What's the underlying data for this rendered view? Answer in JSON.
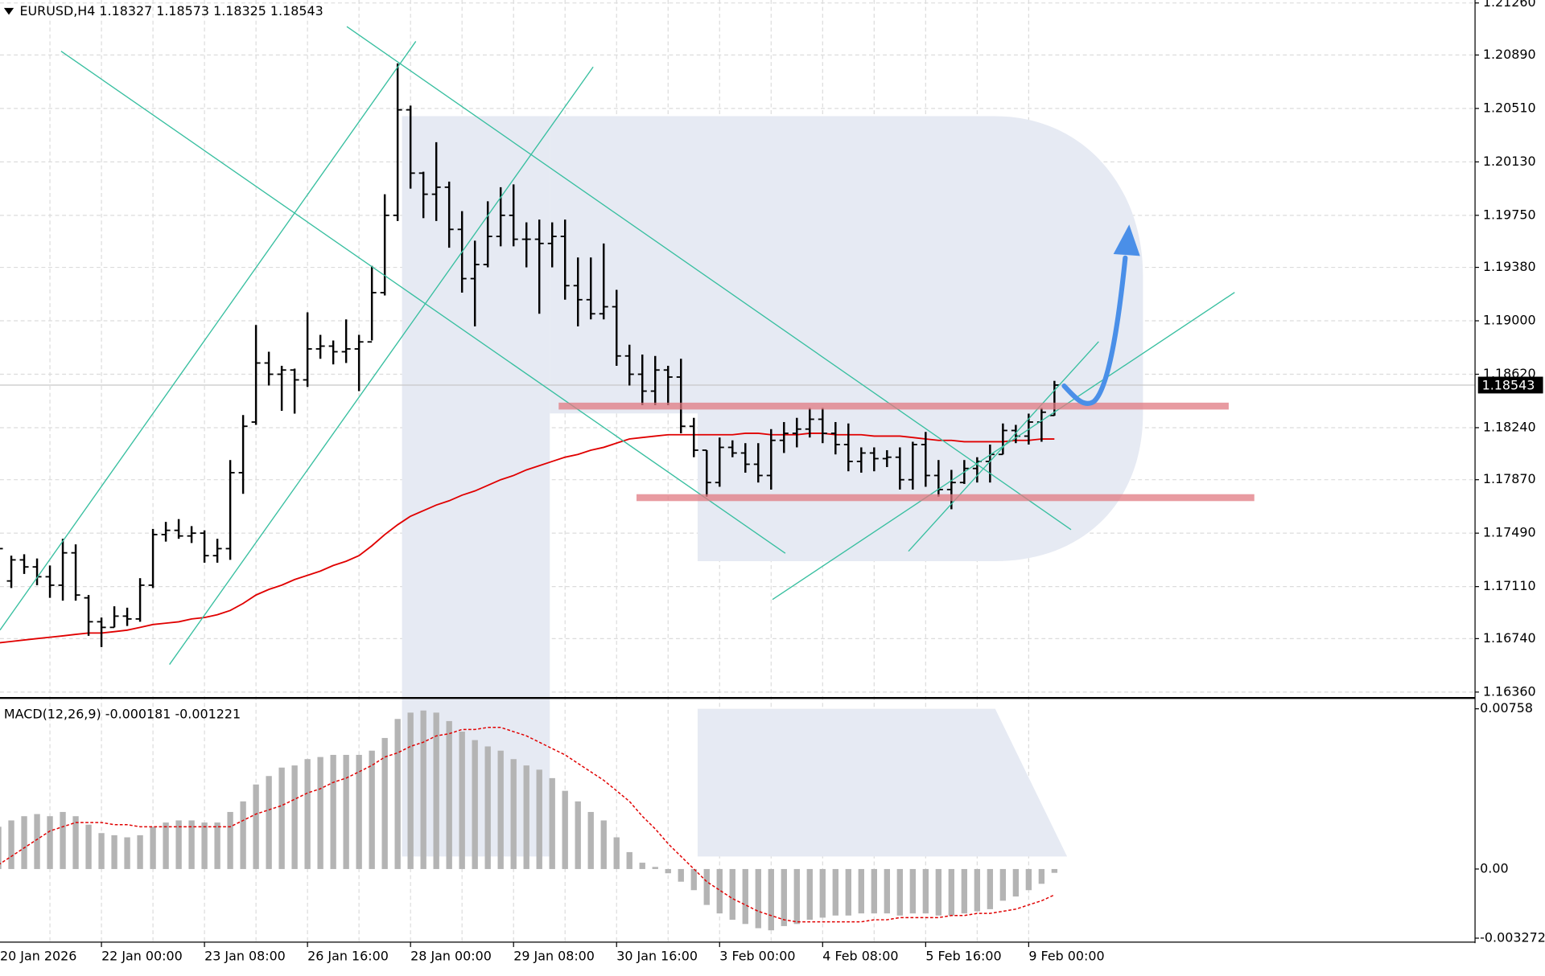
{
  "chart_data": [
    {
      "type": "ohlc",
      "title": "EURUSD,H4  1.18327 1.18573 1.18325 1.18543",
      "categories": [
        "20 Jan 2026",
        null,
        null,
        null,
        null,
        null,
        null,
        null,
        "22 Jan 00:00",
        null,
        null,
        null,
        null,
        null,
        null,
        null,
        "23 Jan 08:00",
        null,
        null,
        null,
        null,
        null,
        null,
        null,
        "26 Jan 16:00",
        null,
        null,
        null,
        null,
        null,
        null,
        null,
        "28 Jan 00:00",
        null,
        null,
        null,
        null,
        null,
        null,
        null,
        "29 Jan 08:00",
        null,
        null,
        null,
        null,
        null,
        null,
        null,
        "30 Jan 16:00",
        null,
        null,
        null,
        null,
        null,
        null,
        null,
        "3 Feb 00:00",
        null,
        null,
        null,
        null,
        null,
        null,
        null,
        "4 Feb 08:00",
        null,
        null,
        null,
        null,
        null,
        null,
        null,
        "5 Feb 16:00",
        null,
        null,
        null,
        null,
        null,
        null,
        null,
        "9 Feb 00:00",
        null,
        null
      ],
      "open": [
        1.1735,
        1.1715,
        1.173,
        1.1725,
        1.1718,
        1.1712,
        1.1735,
        1.1703,
        1.1686,
        1.1682,
        1.169,
        1.1688,
        1.1712,
        1.1748,
        1.1751,
        1.1747,
        1.1749,
        1.1733,
        1.1738,
        1.1792,
        1.1828,
        1.187,
        1.1862,
        1.1865,
        1.1858,
        1.188,
        1.1882,
        1.1878,
        1.188,
        1.1885,
        1.192,
        1.1975,
        1.205,
        1.2005,
        1.199,
        1.1995,
        1.1965,
        1.193,
        1.194,
        1.196,
        1.1975,
        1.1958,
        1.1958,
        1.1955,
        1.196,
        1.1925,
        1.1915,
        1.1905,
        1.191,
        1.1875,
        1.1862,
        1.185,
        1.1865,
        1.186,
        1.1825,
        1.1808,
        1.1785,
        1.181,
        1.1806,
        1.1798,
        1.179,
        1.1815,
        1.182,
        1.1823,
        1.183,
        1.182,
        1.1812,
        1.18,
        1.1806,
        1.1802,
        1.1803,
        1.1787,
        1.1812,
        1.179,
        1.178,
        1.1785,
        1.1795,
        1.18,
        1.1805,
        1.1822,
        1.1818,
        1.1828,
        1.18327
      ],
      "high": [
        1.1745,
        1.1733,
        1.1734,
        1.1731,
        1.1726,
        1.1745,
        1.1741,
        1.1705,
        1.1689,
        1.1697,
        1.1696,
        1.1717,
        1.1752,
        1.1757,
        1.1759,
        1.1754,
        1.1751,
        1.1745,
        1.1801,
        1.1833,
        1.1897,
        1.1878,
        1.1868,
        1.1866,
        1.1906,
        1.189,
        1.1886,
        1.1901,
        1.189,
        1.1939,
        1.199,
        1.2083,
        1.2053,
        1.2006,
        1.2027,
        1.1999,
        1.1978,
        1.1957,
        1.1985,
        1.1995,
        1.1997,
        1.197,
        1.1972,
        1.197,
        1.1972,
        1.1945,
        1.1945,
        1.1955,
        1.1922,
        1.1883,
        1.1876,
        1.1875,
        1.1868,
        1.1873,
        1.1831,
        1.1808,
        1.1817,
        1.1815,
        1.1813,
        1.1813,
        1.1823,
        1.1828,
        1.1831,
        1.1838,
        1.1838,
        1.1828,
        1.1827,
        1.181,
        1.181,
        1.1808,
        1.181,
        1.1814,
        1.1821,
        1.1801,
        1.1794,
        1.1801,
        1.1803,
        1.1812,
        1.1827,
        1.1826,
        1.1834,
        1.1838,
        1.18573
      ],
      "low": [
        1.172,
        1.171,
        1.172,
        1.1712,
        1.1703,
        1.1701,
        1.1701,
        1.1676,
        1.1668,
        1.1682,
        1.1683,
        1.1686,
        1.171,
        1.1743,
        1.1745,
        1.1742,
        1.1728,
        1.1728,
        1.173,
        1.1777,
        1.1826,
        1.1854,
        1.1836,
        1.1834,
        1.1853,
        1.1873,
        1.1869,
        1.187,
        1.185,
        1.1886,
        1.1918,
        1.1971,
        1.1994,
        1.1973,
        1.1971,
        1.1952,
        1.192,
        1.1896,
        1.1938,
        1.1953,
        1.1953,
        1.1938,
        1.1905,
        1.1938,
        1.1915,
        1.1896,
        1.1901,
        1.1901,
        1.1868,
        1.1854,
        1.184,
        1.184,
        1.184,
        1.182,
        1.1803,
        1.1775,
        1.1782,
        1.1803,
        1.1792,
        1.1785,
        1.178,
        1.1806,
        1.181,
        1.1817,
        1.1813,
        1.1805,
        1.1793,
        1.1792,
        1.1793,
        1.1796,
        1.178,
        1.178,
        1.1782,
        1.1775,
        1.1766,
        1.1784,
        1.1785,
        1.1785,
        1.1805,
        1.1813,
        1.1812,
        1.1814,
        1.18325
      ],
      "close": [
        1.1738,
        1.173,
        1.1725,
        1.1718,
        1.1712,
        1.1735,
        1.1705,
        1.1686,
        1.1682,
        1.169,
        1.1688,
        1.1712,
        1.1748,
        1.1751,
        1.1747,
        1.1749,
        1.1733,
        1.1738,
        1.1792,
        1.1825,
        1.187,
        1.1862,
        1.1865,
        1.1858,
        1.188,
        1.1882,
        1.1878,
        1.188,
        1.1885,
        1.192,
        1.1975,
        1.205,
        1.2005,
        1.199,
        1.1995,
        1.1965,
        1.193,
        1.194,
        1.196,
        1.1975,
        1.1958,
        1.1958,
        1.1955,
        1.196,
        1.1925,
        1.1915,
        1.1905,
        1.191,
        1.1875,
        1.1862,
        1.185,
        1.1865,
        1.186,
        1.1825,
        1.1808,
        1.1785,
        1.181,
        1.1806,
        1.1798,
        1.179,
        1.1815,
        1.182,
        1.1823,
        1.183,
        1.182,
        1.1812,
        1.18,
        1.1806,
        1.1802,
        1.1803,
        1.1787,
        1.1812,
        1.179,
        1.178,
        1.1785,
        1.1795,
        1.18,
        1.1805,
        1.1822,
        1.1818,
        1.1828,
        1.1835,
        1.18543
      ],
      "bar_color": "#000000",
      "ma": {
        "color": "#e00000",
        "values": [
          1.1671,
          1.1672,
          1.1673,
          1.1674,
          1.1675,
          1.1676,
          1.1677,
          1.1678,
          1.1678,
          1.1679,
          1.168,
          1.1682,
          1.1684,
          1.1685,
          1.1686,
          1.1688,
          1.1689,
          1.1691,
          1.1694,
          1.1699,
          1.1705,
          1.1709,
          1.1712,
          1.1716,
          1.1719,
          1.1722,
          1.1726,
          1.1729,
          1.1733,
          1.174,
          1.1748,
          1.1755,
          1.1761,
          1.1765,
          1.1769,
          1.1772,
          1.1776,
          1.1779,
          1.1783,
          1.1787,
          1.179,
          1.1794,
          1.1797,
          1.18,
          1.1803,
          1.1805,
          1.1808,
          1.181,
          1.1813,
          1.1816,
          1.1817,
          1.1818,
          1.1819,
          1.1819,
          1.1819,
          1.1819,
          1.1819,
          1.1819,
          1.182,
          1.182,
          1.1819,
          1.1819,
          1.1819,
          1.182,
          1.182,
          1.1819,
          1.1819,
          1.1819,
          1.1818,
          1.1818,
          1.1818,
          1.1817,
          1.1816,
          1.1815,
          1.1815,
          1.1814,
          1.1814,
          1.1814,
          1.1814,
          1.1815,
          1.1815,
          1.1816,
          1.1816
        ]
      },
      "last_price": 1.18543,
      "ylim": [
        1.16332,
        1.21281
      ],
      "yticks": [
        {
          "value": 1.2126,
          "label": "1.21260"
        },
        {
          "value": 1.2089,
          "label": "1.20890"
        },
        {
          "value": 1.2051,
          "label": "1.20510"
        },
        {
          "value": 1.2013,
          "label": "1.20130"
        },
        {
          "value": 1.1975,
          "label": "1.19750"
        },
        {
          "value": 1.1938,
          "label": "1.19380"
        },
        {
          "value": 1.19,
          "label": "1.19000"
        },
        {
          "value": 1.1862,
          "label": "1.18620"
        },
        {
          "value": 1.1824,
          "label": "1.18240"
        },
        {
          "value": 1.1787,
          "label": "1.17870"
        },
        {
          "value": 1.1749,
          "label": "1.17490"
        },
        {
          "value": 1.1711,
          "label": "1.17110"
        },
        {
          "value": 1.1674,
          "label": "1.16740"
        },
        {
          "value": 1.1636,
          "label": "1.16360"
        }
      ],
      "grid": true
    },
    {
      "type": "macd",
      "title": "MACD(12,26,9) -0.000181 -0.001221",
      "histogram": {
        "color": "#b4b4b4",
        "values": [
          0.002,
          0.0023,
          0.0025,
          0.0026,
          0.0025,
          0.0027,
          0.0025,
          0.0021,
          0.0017,
          0.0016,
          0.0015,
          0.0016,
          0.002,
          0.0022,
          0.0023,
          0.0023,
          0.0022,
          0.0022,
          0.0027,
          0.0032,
          0.004,
          0.0044,
          0.0048,
          0.0049,
          0.0052,
          0.0053,
          0.0054,
          0.0054,
          0.0054,
          0.0056,
          0.0062,
          0.0071,
          0.0074,
          0.0075,
          0.0074,
          0.007,
          0.0065,
          0.0061,
          0.0058,
          0.0056,
          0.0052,
          0.0049,
          0.0047,
          0.0043,
          0.0037,
          0.0032,
          0.0027,
          0.0023,
          0.0015,
          0.0008,
          0.0003,
          0.0001,
          -0.0002,
          -0.0006,
          -0.001,
          -0.0017,
          -0.0021,
          -0.0024,
          -0.0026,
          -0.0028,
          -0.0029,
          -0.0027,
          -0.0026,
          -0.0024,
          -0.0023,
          -0.0022,
          -0.0022,
          -0.0021,
          -0.0021,
          -0.0021,
          -0.0022,
          -0.0021,
          -0.0021,
          -0.0022,
          -0.0022,
          -0.0021,
          -0.002,
          -0.0019,
          -0.0015,
          -0.0013,
          -0.001,
          -0.0007,
          -0.000181
        ]
      },
      "signal": {
        "color": "#e00000",
        "values": [
          0.0002,
          0.0006,
          0.001,
          0.0014,
          0.0018,
          0.002,
          0.0022,
          0.0022,
          0.0022,
          0.0021,
          0.0021,
          0.002,
          0.002,
          0.002,
          0.002,
          0.002,
          0.002,
          0.002,
          0.002,
          0.0023,
          0.0026,
          0.0028,
          0.003,
          0.0033,
          0.0036,
          0.0038,
          0.0041,
          0.0043,
          0.0046,
          0.0049,
          0.0053,
          0.0055,
          0.0058,
          0.006,
          0.0063,
          0.0064,
          0.0066,
          0.0066,
          0.0067,
          0.0067,
          0.0065,
          0.0063,
          0.006,
          0.0057,
          0.0054,
          0.005,
          0.0046,
          0.0042,
          0.0037,
          0.0032,
          0.0025,
          0.0019,
          0.0012,
          0.0006,
          0.0,
          -0.0006,
          -0.001,
          -0.0014,
          -0.0017,
          -0.002,
          -0.0022,
          -0.0024,
          -0.0025,
          -0.0025,
          -0.0025,
          -0.0025,
          -0.0025,
          -0.0025,
          -0.0024,
          -0.0024,
          -0.0023,
          -0.0023,
          -0.0023,
          -0.0023,
          -0.0022,
          -0.0022,
          -0.0021,
          -0.0021,
          -0.002,
          -0.0019,
          -0.0017,
          -0.0015,
          -0.001221
        ]
      },
      "ylim": [
        -0.003272,
        0.00758
      ],
      "yticks": [
        0.00758,
        {
          "value": 0,
          "label": "0.00"
        },
        -0.003272
      ]
    }
  ]
}
